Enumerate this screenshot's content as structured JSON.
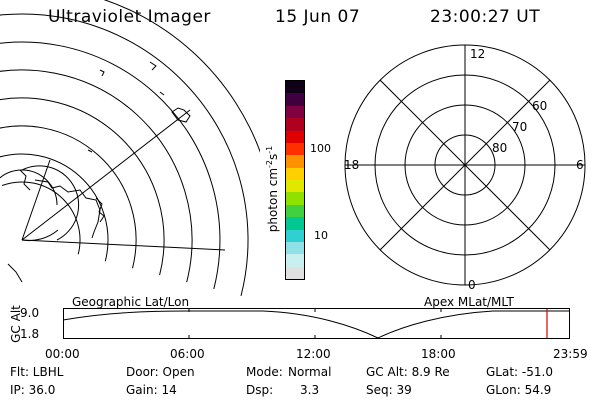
{
  "header": {
    "instrument": "Ultraviolet Imager",
    "date": "15 Jun 07",
    "time": "23:00:27 UT"
  },
  "colorbar": {
    "unit_label": "photon cm",
    "exp1": "-2",
    "mid": "s",
    "exp2": "-1",
    "ticks": [
      "100",
      "10"
    ],
    "colors": [
      "#e0e0e0",
      "#c8f0f0",
      "#90e0e8",
      "#30d0d0",
      "#00c890",
      "#40d040",
      "#90e000",
      "#e0e800",
      "#ffd000",
      "#ff9000",
      "#ff3000",
      "#e00000",
      "#b00020",
      "#800040",
      "#400040",
      "#100018"
    ]
  },
  "polar_plot": {
    "mlt_labels": {
      "top": "12",
      "left": "18",
      "right": "6",
      "bottom": "0"
    },
    "lat_labels": [
      "60",
      "70",
      "80"
    ]
  },
  "footer_labels": {
    "geo": "Geographic Lat/Lon",
    "apex": "Apex MLat/MLT"
  },
  "alt_strip": {
    "axis_label": "GC Alt",
    "y_ticks": [
      "9.0",
      "1.8"
    ],
    "x_ticks": [
      "00:00",
      "06:00",
      "12:00",
      "18:00",
      "23:59"
    ],
    "marker_color": "#e00000"
  },
  "status": {
    "flt": "Flt: LBHL",
    "door": "Door: Open",
    "mode_label": "Mode:",
    "mode_value": "Normal",
    "gc_alt": "GC Alt: 8.9 Re",
    "glat": "GLat: -51.0",
    "ip": "IP: 36.0",
    "gain": "Gain: 14",
    "dsp_label": "Dsp:",
    "dsp_value": "3.3",
    "seq": "Seq: 39",
    "glon": "GLon:  54.9"
  }
}
